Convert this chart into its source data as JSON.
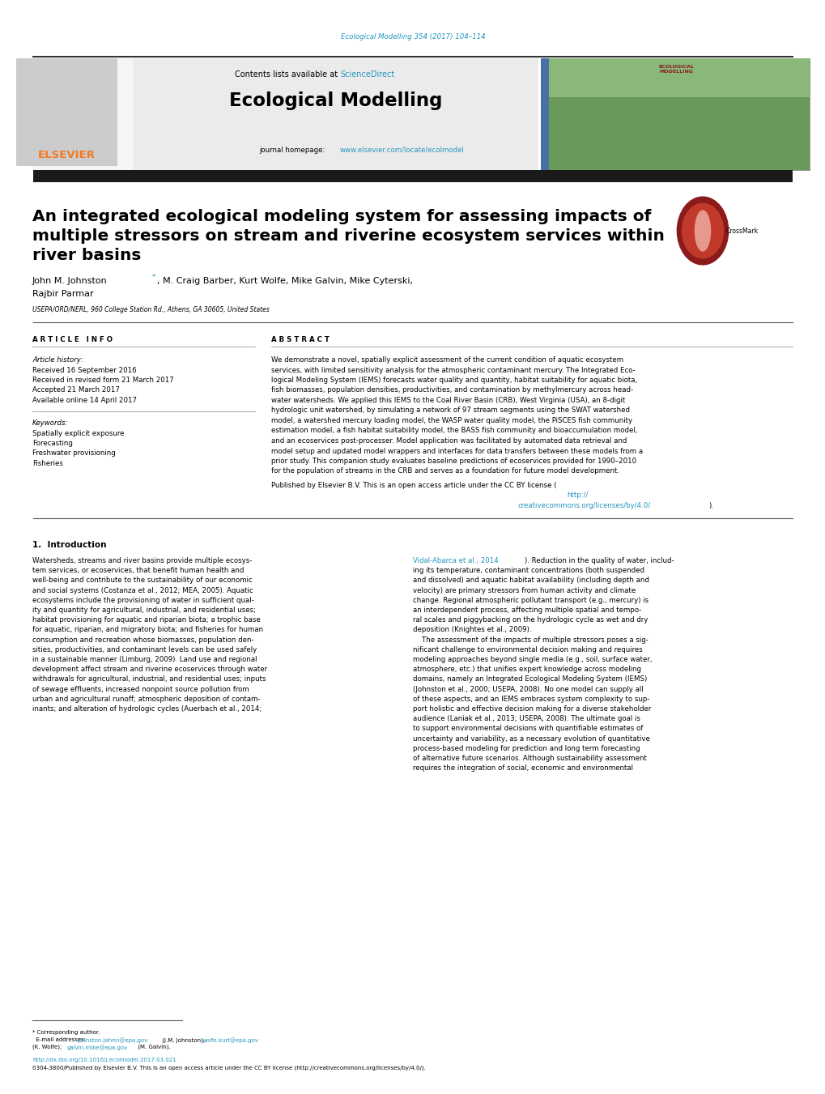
{
  "background_color": "#ffffff",
  "page_width": 10.2,
  "page_height": 13.51,
  "dpi": 100,
  "journal_ref_text": "Ecological Modelling 354 (2017) 104–114",
  "journal_ref_color": "#2596be",
  "contents_text": "Contents lists available at ",
  "sciencedirect_text": "ScienceDirect",
  "sciencedirect_color": "#2596be",
  "journal_name": "Ecological Modelling",
  "journal_homepage_text": "journal homepage: ",
  "journal_homepage_url": "www.elsevier.com/locate/ecolmodel",
  "journal_homepage_color": "#2596be",
  "header_bg_color": "#ebebeb",
  "dark_bar_color": "#1a1a1a",
  "article_title_line1": "An integrated ecological modeling system for assessing impacts of",
  "article_title_line2": "multiple stressors on stream and riverine ecosystem services within",
  "article_title_line3": "river basins",
  "author_name1": "John M. Johnston",
  "author_star": "*",
  "author_star_color": "#2596be",
  "author_rest": ", M. Craig Barber, Kurt Wolfe, Mike Galvin, Mike Cyterski,",
  "author_line2": "Rajbir Parmar",
  "affiliation": "USEPA/ORD/NERL, 960 College Station Rd., Athens, GA 30605, United States",
  "article_info_header": "A R T I C L E   I N F O",
  "abstract_header": "A B S T R A C T",
  "article_history_label": "Article history:",
  "received_text": "Received 16 September 2016",
  "received_revised_text": "Received in revised form 21 March 2017",
  "accepted_text": "Accepted 21 March 2017",
  "available_text": "Available online 14 April 2017",
  "keywords_label": "Keywords:",
  "keywords": [
    "Spatially explicit exposure",
    "Forecasting",
    "Freshwater provisioning",
    "Fisheries"
  ],
  "abstract_lines": [
    "We demonstrate a novel, spatially explicit assessment of the current condition of aquatic ecosystem",
    "services, with limited sensitivity analysis for the atmospheric contaminant mercury. The Integrated Eco-",
    "logical Modeling System (IEMS) forecasts water quality and quantity, habitat suitability for aquatic biota,",
    "fish biomasses, population densities, productivities, and contamination by methylmercury across head-",
    "water watersheds. We applied this IEMS to the Coal River Basin (CRB), West Virginia (USA), an 8-digit",
    "hydrologic unit watershed, by simulating a network of 97 stream segments using the SWAT watershed",
    "model, a watershed mercury loading model, the WASP water quality model, the PiSCES fish community",
    "estimation model, a fish habitat suitability model, the BASS fish community and bioaccumulation model,",
    "and an ecoservices post-processer. Model application was facilitated by automated data retrieval and",
    "model setup and updated model wrappers and interfaces for data transfers between these models from a",
    "prior study. This companion study evaluates baseline predictions of ecoservices provided for 1990–2010",
    "for the population of streams in the CRB and serves as a foundation for future model development."
  ],
  "published_line1": "Published by Elsevier B.V. This is an open access article under the CC BY license (",
  "published_url1": "http://",
  "published_line2_pre": "",
  "published_url2": "creativecommons.org/licenses/by/4.0/",
  "published_close": ").",
  "section1_title": "1.  Introduction",
  "intro_left_lines": [
    "Watersheds, streams and river basins provide multiple ecosys-",
    "tem services, or ecoservices, that benefit human health and",
    "well-being and contribute to the sustainability of our economic",
    "and social systems (Costanza et al., 2012; MEA, 2005). Aquatic",
    "ecosystems include the provisioning of water in sufficient qual-",
    "ity and quantity for agricultural, industrial, and residential uses;",
    "habitat provisioning for aquatic and riparian biota; a trophic base",
    "for aquatic, riparian, and migratory biota; and fisheries for human",
    "consumption and recreation whose biomasses, population den-",
    "sities, productivities, and contaminant levels can be used safely",
    "in a sustainable manner (Limburg, 2009). Land use and regional",
    "development affect stream and riverine ecoservices through water",
    "withdrawals for agricultural, industrial, and residential uses; inputs",
    "of sewage effluents, increased nonpoint source pollution from",
    "urban and agricultural runoff; atmospheric deposition of contam-",
    "inants; and alteration of hydrologic cycles (Auerbach et al., 2014;"
  ],
  "intro_right_lines": [
    "Vidal-Abarca et al., 2014|). Reduction in the quality of water, includ-",
    "ing its temperature, contaminant concentrations (both suspended",
    "and dissolved) and aquatic habitat availability (including depth and",
    "velocity) are primary stressors from human activity and climate",
    "change. Regional atmospheric pollutant transport (e.g., mercury) is",
    "an interdependent process, affecting multiple spatial and tempo-",
    "ral scales and piggybacking on the hydrologic cycle as wet and dry",
    "deposition (Knightes et al., 2009).",
    "    The assessment of the impacts of multiple stressors poses a sig-",
    "nificant challenge to environmental decision making and requires",
    "modeling approaches beyond single media (e.g., soil, surface water,",
    "atmosphere, etc.) that unifies expert knowledge across modeling",
    "domains, namely an Integrated Ecological Modeling System (IEMS)",
    "(Johnston et al., 2000; USEPA, 2008). No one model can supply all",
    "of these aspects, and an IEMS embraces system complexity to sup-",
    "port holistic and effective decision making for a diverse stakeholder",
    "audience (Laniak et al., 2013; USEPA, 2008). The ultimate goal is",
    "to support environmental decisions with quantifiable estimates of",
    "uncertainty and variability, as a necessary evolution of quantitative",
    "process-based modeling for prediction and long term forecasting",
    "of alternative future scenarios. Although sustainability assessment",
    "requires the integration of social, economic and environmental"
  ],
  "footnote_star": "* Corresponding author.",
  "footnote_email_label": "  E-mail addresses: ",
  "footnote_email1": "johnston.jahnn@epa.gov",
  "footnote_email1_label": " (J.M. Johnston), ",
  "footnote_email2": "wolfe.kurt@epa.gov",
  "footnote_line2": "(K. Wolfe); ",
  "footnote_email3": "galvin.mike@epa.gov",
  "footnote_line2b": " (M. Galvin).",
  "doi_text": "http://dx.doi.org/10.1016/j.ecolmodel.2017.03.021",
  "issn_text": "0304-3800/Published by Elsevier B.V. This is an open access article under the CC BY license (http://creativecommons.org/licenses/by/4.0/).",
  "link_color": "#2596be",
  "text_color": "#000000",
  "elsevier_color": "#f47920",
  "crossmark_outer": "#c0392b",
  "crossmark_mid": "#e74c3c",
  "crossmark_inner": "#f1948a"
}
